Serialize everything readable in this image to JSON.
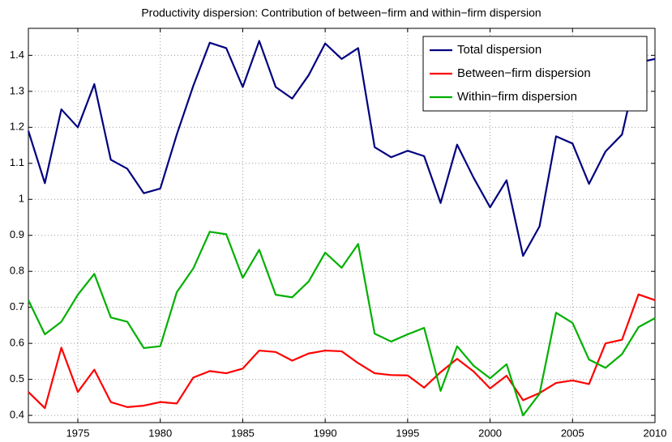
{
  "chart_data": {
    "type": "line",
    "title": "Productivity dispersion: Contribution of between−firm and within−firm dispersion",
    "x": [
      1972,
      1973,
      1974,
      1975,
      1976,
      1977,
      1978,
      1979,
      1980,
      1981,
      1982,
      1983,
      1984,
      1985,
      1986,
      1987,
      1988,
      1989,
      1990,
      1991,
      1992,
      1993,
      1994,
      1995,
      1996,
      1997,
      1998,
      1999,
      2000,
      2001,
      2002,
      2003,
      2004,
      2005,
      2006,
      2007,
      2008,
      2009,
      2010
    ],
    "series": [
      {
        "name": "Total dispersion",
        "color": "#00007f",
        "values": [
          1.19,
          1.045,
          1.25,
          1.2,
          1.32,
          1.11,
          1.085,
          1.017,
          1.03,
          1.18,
          1.315,
          1.435,
          1.42,
          1.312,
          1.44,
          1.312,
          1.28,
          1.345,
          1.433,
          1.39,
          1.42,
          1.145,
          1.117,
          1.135,
          1.12,
          0.99,
          1.152,
          1.06,
          0.978,
          1.053,
          0.843,
          0.925,
          1.175,
          1.155,
          1.043,
          1.133,
          1.18,
          1.38,
          1.39
        ]
      },
      {
        "name": "Between−firm dispersion",
        "color": "#ff0000",
        "values": [
          0.465,
          0.42,
          0.588,
          0.465,
          0.527,
          0.437,
          0.423,
          0.427,
          0.437,
          0.433,
          0.505,
          0.523,
          0.517,
          0.53,
          0.58,
          0.576,
          0.552,
          0.572,
          0.58,
          0.578,
          0.545,
          0.517,
          0.512,
          0.511,
          0.477,
          0.52,
          0.557,
          0.522,
          0.475,
          0.51,
          0.442,
          0.462,
          0.49,
          0.497,
          0.487,
          0.6,
          0.61,
          0.736,
          0.72
        ]
      },
      {
        "name": "Within−firm dispersion",
        "color": "#00b000",
        "values": [
          0.72,
          0.625,
          0.66,
          0.735,
          0.793,
          0.672,
          0.66,
          0.587,
          0.592,
          0.742,
          0.808,
          0.91,
          0.903,
          0.782,
          0.86,
          0.735,
          0.728,
          0.772,
          0.852,
          0.81,
          0.876,
          0.627,
          0.605,
          0.625,
          0.643,
          0.468,
          0.592,
          0.538,
          0.503,
          0.542,
          0.4,
          0.46,
          0.685,
          0.657,
          0.555,
          0.532,
          0.57,
          0.645,
          0.67
        ]
      }
    ],
    "xlim": [
      1972,
      2010
    ],
    "xticks": [
      1975,
      1980,
      1985,
      1990,
      1995,
      2000,
      2005,
      2010
    ],
    "ylim": [
      0.38,
      1.475
    ],
    "yticks": [
      0.4,
      0.5,
      0.6,
      0.7,
      0.8,
      0.9,
      1,
      1.1,
      1.2,
      1.3,
      1.4
    ],
    "grid": true,
    "legend": "top-right"
  }
}
